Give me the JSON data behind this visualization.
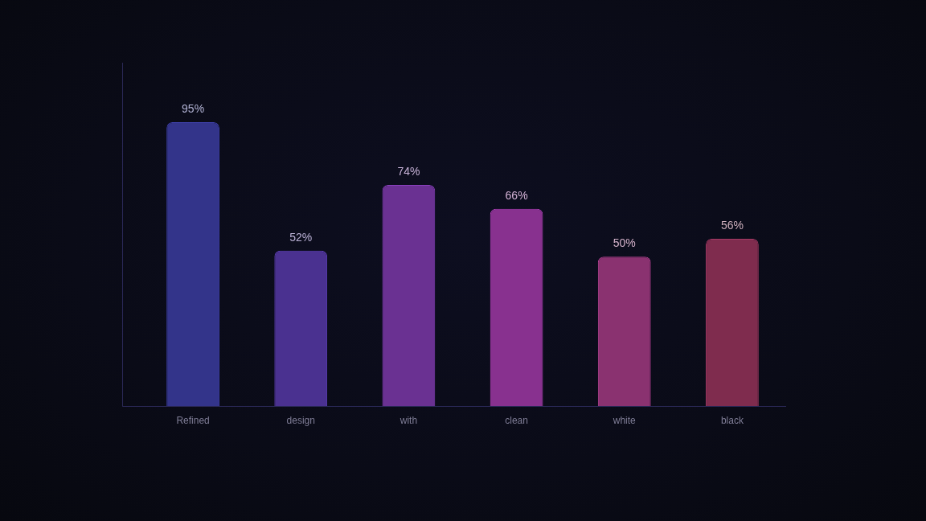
{
  "chart_data": {
    "type": "bar",
    "categories": [
      "Refined",
      "design",
      "with",
      "clean",
      "white",
      "black"
    ],
    "values": [
      95,
      52,
      74,
      66,
      50,
      56
    ],
    "colors": [
      "#33348a",
      "#4a3190",
      "#6a3192",
      "#88318f",
      "#8a3270",
      "#7f2c4e"
    ],
    "value_labels": [
      "95%",
      "52%",
      "74%",
      "66%",
      "50%",
      "56%"
    ],
    "tick_labels": "x"
  }
}
